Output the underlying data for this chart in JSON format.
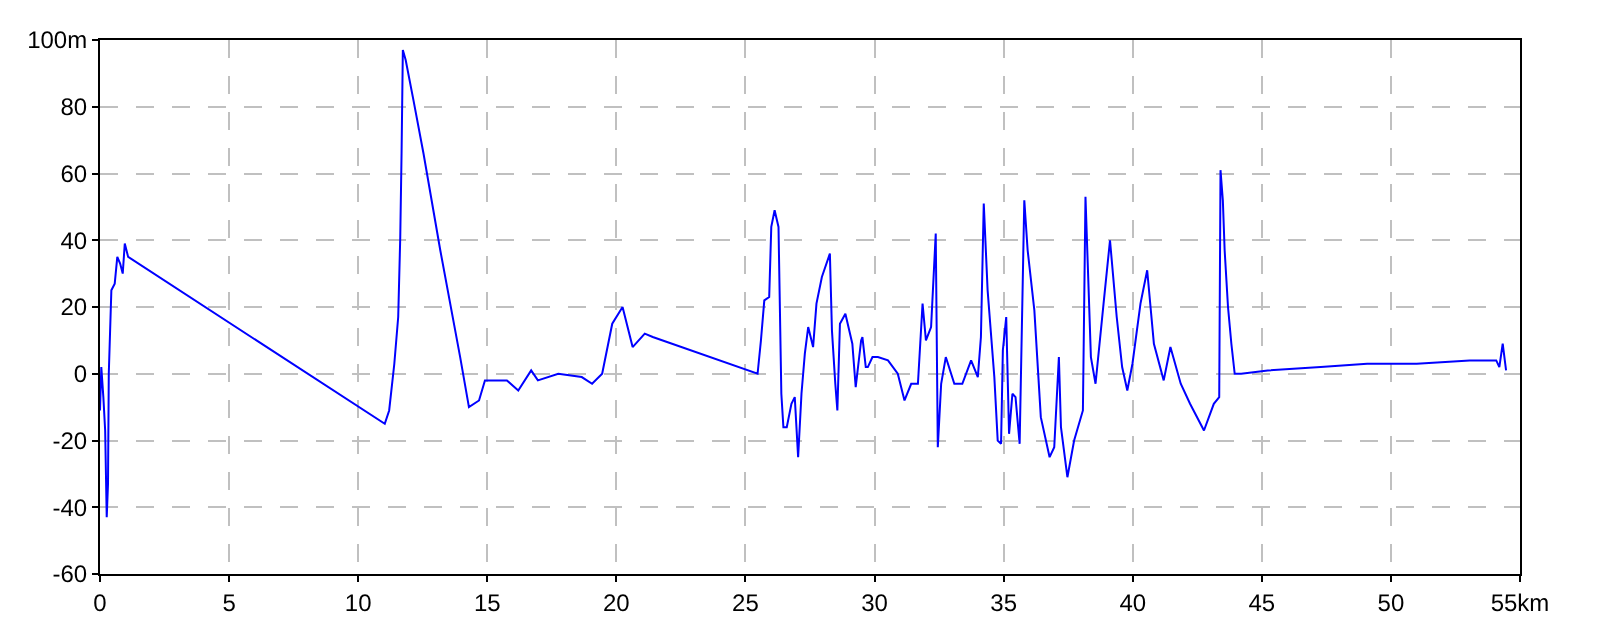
{
  "chart_data": {
    "type": "line",
    "grid": true,
    "marker": "none",
    "line_style": "solid",
    "xlim": [
      0,
      55
    ],
    "ylim": [
      -60,
      100
    ],
    "xticks": [
      0,
      5,
      10,
      15,
      20,
      25,
      30,
      35,
      40,
      45,
      50,
      {
        "value": 55,
        "label": "55km"
      }
    ],
    "yticks": [
      -60,
      -40,
      -20,
      0,
      20,
      40,
      60,
      80,
      {
        "value": 100,
        "label": "100m"
      }
    ],
    "series": [
      {
        "color": "#0000ff",
        "x": [
          0,
          0.05,
          0.13,
          0.2,
          0.26,
          0.31,
          0.34,
          0.44,
          0.57,
          0.67,
          0.78,
          0.88,
          0.96,
          1.09,
          11.03,
          11.2,
          11.4,
          11.55,
          11.63,
          11.68,
          11.73,
          11.84,
          12.14,
          12.53,
          13.18,
          13.95,
          14.29,
          14.68,
          14.91,
          15.76,
          16.2,
          16.7,
          16.96,
          17.75,
          18.66,
          19.06,
          19.45,
          19.84,
          20.24,
          20.63,
          21.1,
          21.41,
          25.47,
          25.6,
          25.73,
          25.92,
          26.0,
          26.13,
          26.28,
          26.39,
          26.47,
          26.6,
          26.78,
          26.91,
          27.04,
          27.17,
          27.3,
          27.43,
          27.62,
          27.75,
          27.96,
          28.27,
          28.35,
          28.48,
          28.56,
          28.66,
          28.87,
          29.14,
          29.27,
          29.48,
          29.53,
          29.66,
          29.74,
          29.92,
          30.13,
          30.52,
          30.9,
          31.16,
          31.42,
          31.68,
          31.86,
          31.99,
          32.19,
          32.37,
          32.45,
          32.58,
          32.76,
          33.09,
          33.4,
          33.74,
          34.0,
          34.12,
          34.23,
          34.38,
          34.64,
          34.77,
          34.9,
          34.97,
          35.1,
          35.21,
          35.34,
          35.46,
          35.62,
          35.8,
          35.93,
          36.19,
          36.44,
          36.78,
          36.96,
          37.14,
          37.22,
          37.47,
          37.73,
          38.07,
          38.17,
          38.38,
          38.56,
          38.87,
          39.12,
          39.38,
          39.59,
          39.79,
          39.99,
          40.3,
          40.56,
          40.82,
          41.2,
          41.46,
          41.86,
          42.22,
          42.76,
          43.14,
          43.35,
          43.4,
          43.49,
          43.56,
          43.69,
          43.82,
          43.95,
          44.2,
          45.23,
          47.28,
          49.08,
          51.0,
          53.05,
          54.08,
          54.2,
          54.33,
          54.46
        ],
        "values": [
          -11,
          2,
          -7,
          -17,
          -43,
          -33,
          0,
          25,
          27,
          35,
          33,
          30,
          39,
          35,
          -15,
          -11,
          3,
          17,
          41,
          66,
          97,
          94,
          82,
          66,
          37,
          5,
          -10,
          -8,
          -2,
          -2,
          -5,
          1,
          -2,
          0,
          -1,
          -3,
          0,
          15,
          20,
          8,
          12,
          11,
          0,
          10,
          22,
          23,
          44,
          49,
          44,
          -6,
          -16,
          -16,
          -9,
          -7,
          -25,
          -6,
          6,
          14,
          8,
          21,
          29,
          36,
          13,
          -3,
          -11,
          15,
          18,
          9,
          -4,
          10,
          11,
          2,
          2,
          5,
          5,
          4,
          0,
          -8,
          -3,
          -3,
          21,
          10,
          14,
          42,
          -22,
          -3,
          5,
          -3,
          -3,
          4,
          -1,
          11,
          51,
          25,
          -1,
          -20,
          -21,
          7,
          17,
          -18,
          -6,
          -7,
          -21,
          52,
          37,
          19,
          -13,
          -25,
          -22,
          5,
          -16,
          -31,
          -20,
          -11,
          53,
          5,
          -3,
          21,
          40,
          17,
          2,
          -5,
          3,
          21,
          31,
          9,
          -2,
          8,
          -3,
          -9,
          -17,
          -9,
          -7,
          61,
          52,
          37,
          20,
          9,
          0,
          0,
          1,
          2,
          3,
          3,
          4,
          4,
          2,
          9,
          1
        ]
      }
    ]
  }
}
